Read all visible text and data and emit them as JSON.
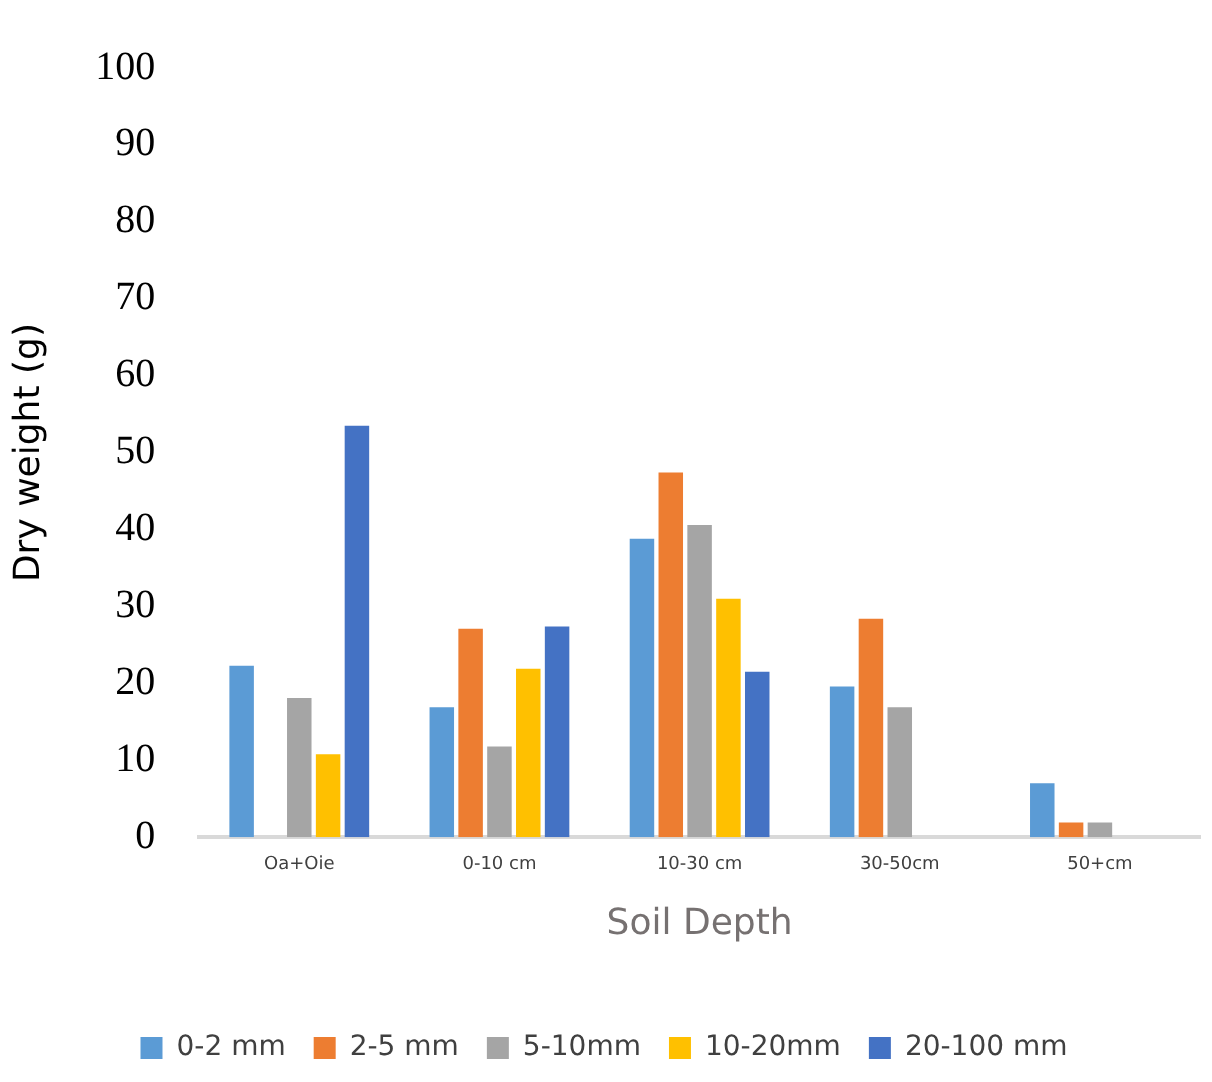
{
  "chart_data": {
    "type": "bar",
    "xlabel": "Soil Depth",
    "ylabel": "Dry weight (g)",
    "categories": [
      "Oa+Oie",
      "0-10 cm",
      "10-30 cm",
      "30-50cm",
      "50+cm"
    ],
    "series": [
      {
        "name": "0-2 mm",
        "color": "#5b9bd5",
        "values": [
          22.3,
          16.9,
          38.8,
          19.6,
          7.0
        ]
      },
      {
        "name": "2-5 mm",
        "color": "#ed7d31",
        "values": [
          null,
          27.1,
          47.4,
          28.4,
          1.9
        ]
      },
      {
        "name": "5-10mm",
        "color": "#a5a5a5",
        "values": [
          18.1,
          11.8,
          40.6,
          16.9,
          1.9
        ]
      },
      {
        "name": "10-20mm",
        "color": "#ffc000",
        "values": [
          10.8,
          21.9,
          31.0,
          null,
          null
        ]
      },
      {
        "name": "20-100 mm",
        "color": "#4472c4",
        "values": [
          53.5,
          27.4,
          21.5,
          null,
          null
        ]
      }
    ],
    "ylim": [
      0,
      100
    ],
    "yticks": [
      0,
      10,
      20,
      30,
      40,
      50,
      60,
      70,
      80,
      90,
      100
    ],
    "grid": false,
    "legend": "bottom"
  }
}
